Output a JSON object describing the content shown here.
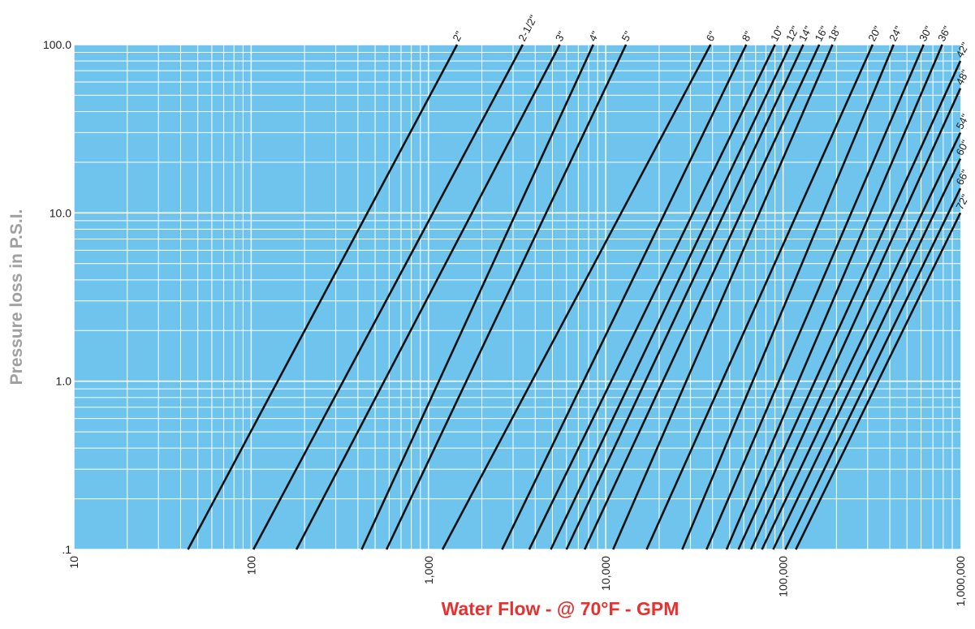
{
  "chart_data": {
    "type": "line",
    "title": "",
    "xlabel": "Water Flow - @ 70°F - GPM",
    "ylabel": "Pressure loss in P.S.I.",
    "x_scale": "log",
    "y_scale": "log",
    "xlim": [
      10,
      1000000
    ],
    "ylim": [
      0.1,
      100
    ],
    "x_ticks": [
      10,
      100,
      1000,
      10000,
      100000,
      1000000
    ],
    "x_tick_labels": [
      "10",
      "100",
      "1,000",
      "10,000",
      "100,000",
      "1,000,000"
    ],
    "y_ticks": [
      0.1,
      1,
      10,
      100
    ],
    "y_tick_labels": [
      ".1",
      "1.0",
      "10.0",
      "100.0"
    ],
    "grid": true,
    "colors": {
      "plot_bg": "#6fc4ee",
      "grid": "#ffffff",
      "line": "#111111",
      "xlabel": "#e8302e",
      "ylabel": "#a0a0a0"
    },
    "series": [
      {
        "name": "2\"",
        "x": [
          44,
          1450
        ],
        "y": [
          0.1,
          100
        ]
      },
      {
        "name": "2-1/2\"",
        "x": [
          103,
          3400
        ],
        "y": [
          0.1,
          100
        ]
      },
      {
        "name": "3\"",
        "x": [
          180,
          5500
        ],
        "y": [
          0.1,
          100
        ]
      },
      {
        "name": "4\"",
        "x": [
          420,
          8500
        ],
        "y": [
          0.1,
          100
        ]
      },
      {
        "name": "5\"",
        "x": [
          580,
          13000
        ],
        "y": [
          0.1,
          100
        ]
      },
      {
        "name": "6\"",
        "x": [
          1200,
          39000
        ],
        "y": [
          0.1,
          100
        ]
      },
      {
        "name": "8\"",
        "x": [
          2600,
          62000
        ],
        "y": [
          0.1,
          100
        ]
      },
      {
        "name": "10\"",
        "x": [
          3700,
          90000
        ],
        "y": [
          0.1,
          100
        ]
      },
      {
        "name": "12\"",
        "x": [
          4900,
          110000
        ],
        "y": [
          0.1,
          100
        ]
      },
      {
        "name": "14\"",
        "x": [
          6000,
          130000
        ],
        "y": [
          0.1,
          100
        ]
      },
      {
        "name": "16\"",
        "x": [
          7600,
          160000
        ],
        "y": [
          0.1,
          100
        ]
      },
      {
        "name": "18\"",
        "x": [
          11000,
          190000
        ],
        "y": [
          0.1,
          100
        ]
      },
      {
        "name": "20\"",
        "x": [
          17000,
          320000
        ],
        "y": [
          0.1,
          100
        ]
      },
      {
        "name": "24\"",
        "x": [
          27000,
          420000
        ],
        "y": [
          0.1,
          100
        ]
      },
      {
        "name": "30\"",
        "x": [
          37000,
          620000
        ],
        "y": [
          0.1,
          100
        ]
      },
      {
        "name": "36\"",
        "x": [
          48000,
          790000
        ],
        "y": [
          0.1,
          100
        ]
      },
      {
        "name": "42\"",
        "x": [
          56000,
          1000000
        ],
        "y": [
          0.1,
          80
        ]
      },
      {
        "name": "48\"",
        "x": [
          66000,
          1000000
        ],
        "y": [
          0.1,
          55
        ]
      },
      {
        "name": "54\"",
        "x": [
          76000,
          1000000
        ],
        "y": [
          0.1,
          30
        ]
      },
      {
        "name": "60\"",
        "x": [
          88000,
          1000000
        ],
        "y": [
          0.1,
          21
        ]
      },
      {
        "name": "66\"",
        "x": [
          103000,
          1000000
        ],
        "y": [
          0.1,
          14
        ]
      },
      {
        "name": "72\"",
        "x": [
          118000,
          1000000
        ],
        "y": [
          0.1,
          10
        ]
      }
    ]
  }
}
